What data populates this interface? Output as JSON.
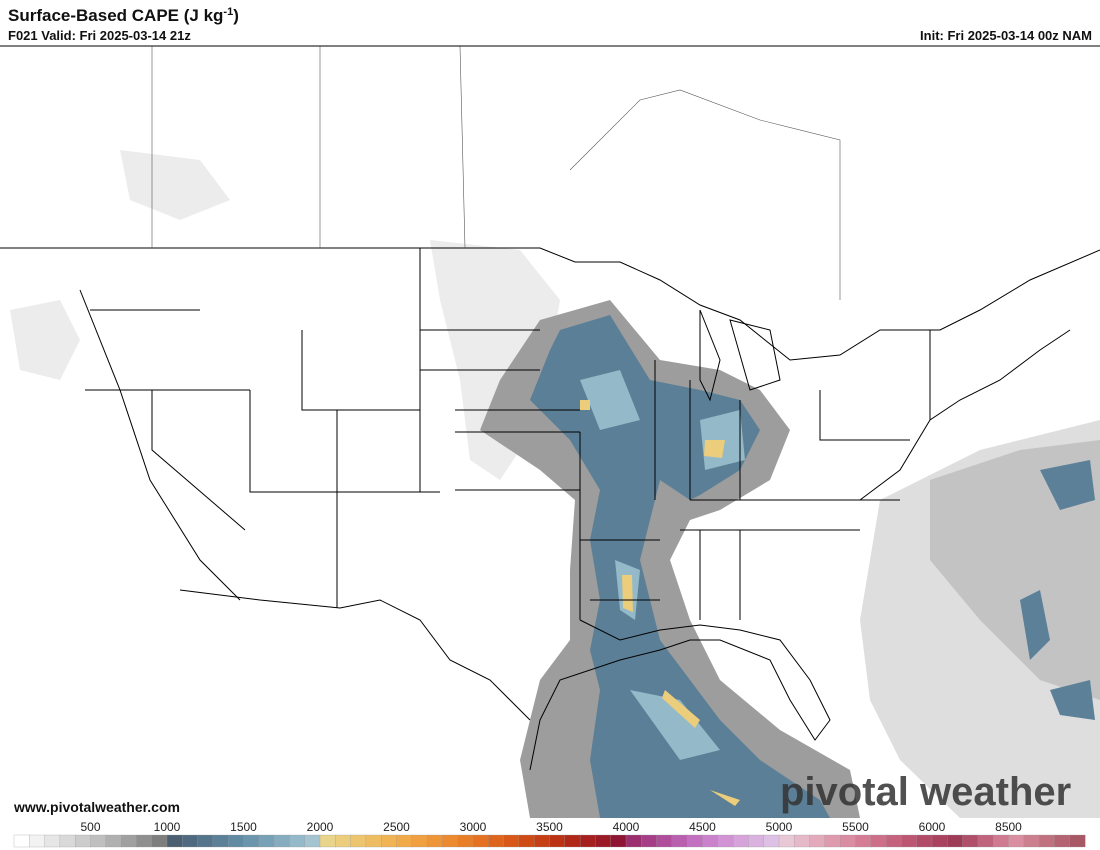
{
  "header": {
    "title": "Surface-Based CAPE (J kg",
    "title_superscript": "-1",
    "title_end": ")",
    "valid": "F021 Valid: Fri 2025-03-14 21z",
    "init": "Init: Fri 2025-03-14 00z NAM"
  },
  "map": {
    "watermark": "pivotal weather",
    "website": "www.pivotalweather.com"
  },
  "colorbar": {
    "ticks": [
      500,
      1000,
      1500,
      2000,
      2500,
      3000,
      3500,
      4000,
      4500,
      5000,
      5500,
      6000,
      8500
    ],
    "colors": [
      "#ffffff",
      "#f2f2f2",
      "#e6e6e6",
      "#d9d9d9",
      "#cccccc",
      "#bfbfbf",
      "#b0b0b0",
      "#a0a0a0",
      "#8f8f8f",
      "#7e7e7e",
      "#4b5f73",
      "#4f6a80",
      "#55758c",
      "#5b8098",
      "#618aa3",
      "#6a95ad",
      "#77a1b6",
      "#85adbf",
      "#94b9c8",
      "#a3c4d0",
      "#e8d48a",
      "#ebcd7c",
      "#edc56e",
      "#efbd61",
      "#f0b455",
      "#f1aa4a",
      "#f0a040",
      "#ee9537",
      "#eb8a2f",
      "#e87f28",
      "#e47222",
      "#de651d",
      "#d75818",
      "#cf4b15",
      "#c63e13",
      "#bb3214",
      "#b02818",
      "#a5201e",
      "#9a1a28",
      "#8e1634",
      "#9a2e6e",
      "#a53e86",
      "#b04e9c",
      "#ba5fb0",
      "#c470c1",
      "#cb82cc",
      "#d193d4",
      "#d6a3da",
      "#dab2df",
      "#ddc0e3",
      "#e8c8d4",
      "#e5b9c7",
      "#e2aabb",
      "#de9bae",
      "#da8ca2",
      "#d47d95",
      "#cd6f89",
      "#c5627d",
      "#bc5672",
      "#b24b67",
      "#a8425e",
      "#9e3b57",
      "#b04f6a",
      "#c0647d",
      "#cf7a90",
      "#d98f9f",
      "#cc7f8f",
      "#c07180",
      "#b46372",
      "#a85765"
    ]
  }
}
